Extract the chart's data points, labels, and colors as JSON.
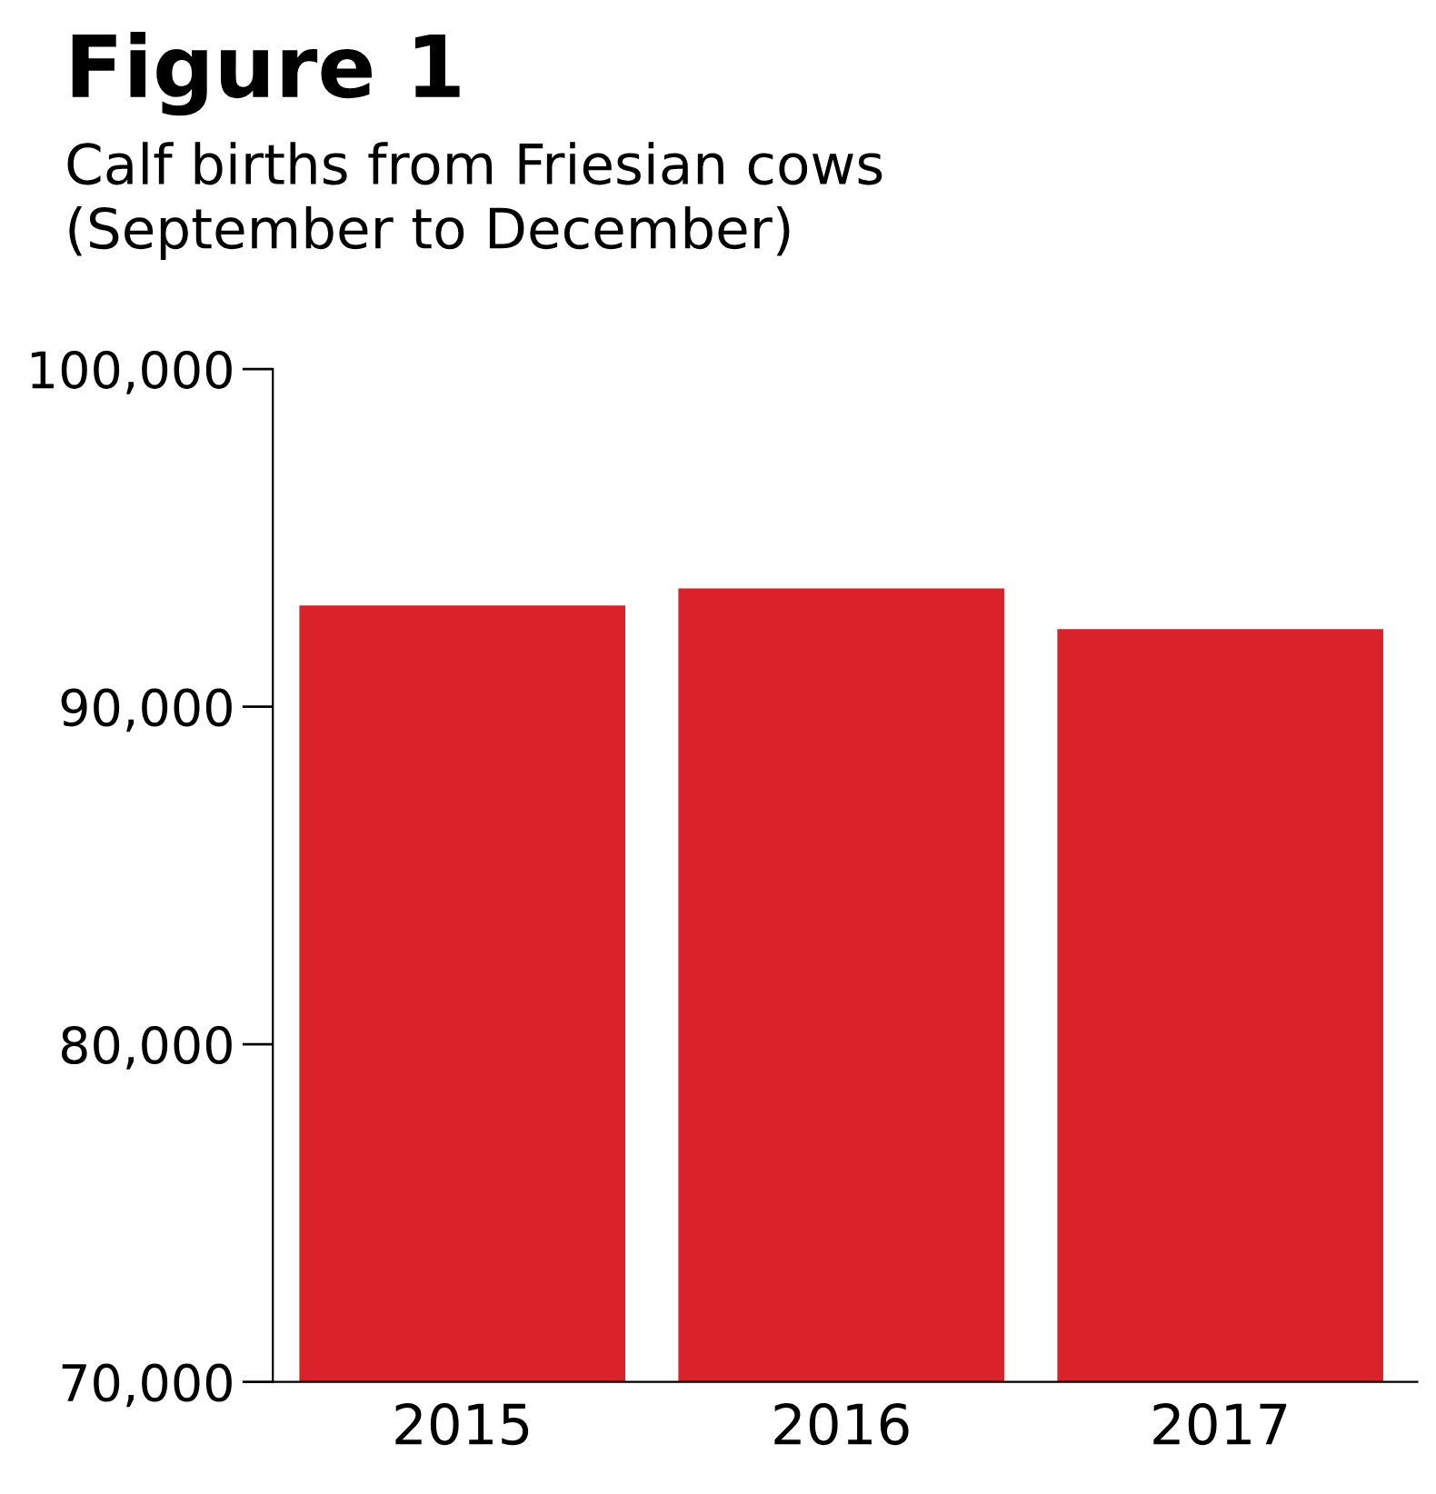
{
  "chart_data": {
    "type": "bar",
    "title": "Figure 1",
    "subtitle": "Calf births from Friesian cows\n(September to December)",
    "categories": [
      "2015",
      "2016",
      "2017"
    ],
    "values": [
      93000,
      93500,
      92300
    ],
    "color": "#d9222a",
    "ylim": [
      70000,
      100000
    ],
    "yticks": [
      {
        "value": 70000,
        "label": "70,000"
      },
      {
        "value": 80000,
        "label": "80,000"
      },
      {
        "value": 90000,
        "label": "90,000"
      },
      {
        "value": 100000,
        "label": "100,000"
      }
    ],
    "grid": false,
    "legend": false
  }
}
